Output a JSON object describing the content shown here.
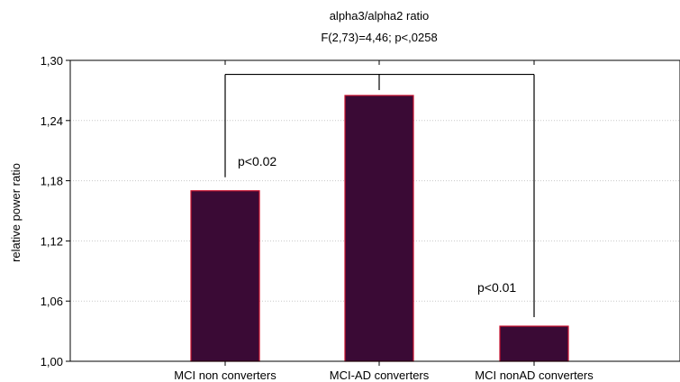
{
  "chart_data": {
    "type": "bar",
    "title": "alpha3/alpha2 ratio",
    "subtitle": "F(2,73)=4,46; p<,0258",
    "xlabel": "",
    "ylabel": "relative power ratio",
    "categories": [
      "MCI non converters",
      "MCI-AD converters",
      "MCI nonAD converters"
    ],
    "values": [
      1.17,
      1.265,
      1.035
    ],
    "ylim": [
      1.0,
      1.3
    ],
    "yticks": [
      1.0,
      1.06,
      1.12,
      1.18,
      1.24,
      1.3
    ],
    "ytick_labels": [
      "1,00",
      "1,06",
      "1,12",
      "1,18",
      "1,24",
      "1,30"
    ],
    "grid": true,
    "bar_color": "#3a0a35",
    "bar_edge_color": "#c8102e",
    "annotations": [
      {
        "text": "p<0.02",
        "category": "MCI non converters"
      },
      {
        "text": "p<0.01",
        "category": "MCI nonAD converters"
      }
    ]
  }
}
